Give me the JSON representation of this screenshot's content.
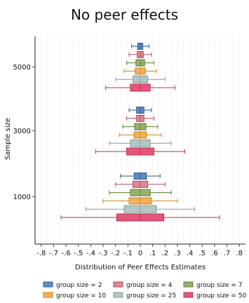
{
  "chart_data": {
    "type": "box",
    "title": "No peer effects",
    "xlabel": "Distribution of Peer Effects Estimates",
    "ylabel": "Sample size",
    "xlim": [
      -0.85,
      0.85
    ],
    "x_ticks": [
      -0.8,
      -0.7,
      -0.6,
      -0.5,
      -0.4,
      -0.3,
      -0.2,
      -0.1,
      0,
      0.1,
      0.2,
      0.3,
      0.4,
      0.5,
      0.6,
      0.7,
      0.8
    ],
    "x_tick_labels": [
      "-.8",
      "-.7",
      "-.6",
      "-.5",
      "-.4",
      "-.3",
      "-.2",
      "-.1",
      "0",
      ".1",
      ".2",
      ".3",
      ".4",
      ".5",
      ".6",
      ".7",
      ".8"
    ],
    "grid": "vertical dotted",
    "legend_position": "bottom",
    "groups": [
      {
        "label": "5000",
        "series": [
          {
            "name": "group size = 2",
            "whisker_low": -0.07,
            "q1": -0.02,
            "median": 0.0,
            "q3": 0.02,
            "whisker_high": 0.07
          },
          {
            "name": "group size = 4",
            "whisker_low": -0.09,
            "q1": -0.025,
            "median": 0.0,
            "q3": 0.025,
            "whisker_high": 0.09
          },
          {
            "name": "group size = 7",
            "whisker_low": -0.11,
            "q1": -0.035,
            "median": 0.0,
            "q3": 0.035,
            "whisker_high": 0.11
          },
          {
            "name": "group size = 10",
            "whisker_low": -0.13,
            "q1": -0.04,
            "median": 0.0,
            "q3": 0.04,
            "whisker_high": 0.13
          },
          {
            "name": "group size = 25",
            "whisker_low": -0.2,
            "q1": -0.06,
            "median": 0.0,
            "q3": 0.06,
            "whisker_high": 0.2
          },
          {
            "name": "group size = 50",
            "whisker_low": -0.28,
            "q1": -0.08,
            "median": 0.0,
            "q3": 0.08,
            "whisker_high": 0.28
          }
        ]
      },
      {
        "label": "3000",
        "series": [
          {
            "name": "group size = 2",
            "whisker_low": -0.09,
            "q1": -0.03,
            "median": 0.0,
            "q3": 0.03,
            "whisker_high": 0.09
          },
          {
            "name": "group size = 4",
            "whisker_low": -0.11,
            "q1": -0.03,
            "median": 0.0,
            "q3": 0.03,
            "whisker_high": 0.11
          },
          {
            "name": "group size = 7",
            "whisker_low": -0.14,
            "q1": -0.045,
            "median": 0.0,
            "q3": 0.045,
            "whisker_high": 0.14
          },
          {
            "name": "group size = 10",
            "whisker_low": -0.17,
            "q1": -0.05,
            "median": 0.0,
            "q3": 0.05,
            "whisker_high": 0.17
          },
          {
            "name": "group size = 25",
            "whisker_low": -0.25,
            "q1": -0.08,
            "median": 0.0,
            "q3": 0.08,
            "whisker_high": 0.25
          },
          {
            "name": "group size = 50",
            "whisker_low": -0.36,
            "q1": -0.11,
            "median": 0.0,
            "q3": 0.11,
            "whisker_high": 0.36
          }
        ]
      },
      {
        "label": "1000",
        "series": [
          {
            "name": "group size = 2",
            "whisker_low": -0.16,
            "q1": -0.05,
            "median": 0.0,
            "q3": 0.05,
            "whisker_high": 0.16
          },
          {
            "name": "group size = 4",
            "whisker_low": -0.2,
            "q1": -0.06,
            "median": 0.0,
            "q3": 0.06,
            "whisker_high": 0.2
          },
          {
            "name": "group size = 7",
            "whisker_low": -0.25,
            "q1": -0.08,
            "median": 0.0,
            "q3": 0.08,
            "whisker_high": 0.25
          },
          {
            "name": "group size = 10",
            "whisker_low": -0.3,
            "q1": -0.09,
            "median": 0.0,
            "q3": 0.09,
            "whisker_high": 0.3
          },
          {
            "name": "group size = 25",
            "whisker_low": -0.44,
            "q1": -0.13,
            "median": 0.0,
            "q3": 0.13,
            "whisker_high": 0.44
          },
          {
            "name": "group size = 50",
            "whisker_low": -0.64,
            "q1": -0.19,
            "median": 0.0,
            "q3": 0.19,
            "whisker_high": 0.64
          }
        ]
      }
    ],
    "series_styles": [
      {
        "name": "group size = 2",
        "fill": "#5b8ec4",
        "stroke": "#2d5a8e"
      },
      {
        "name": "group size = 4",
        "fill": "#d98a96",
        "stroke": "#b04a5c"
      },
      {
        "name": "group size = 7",
        "fill": "#98b46a",
        "stroke": "#5d7a33"
      },
      {
        "name": "group size = 10",
        "fill": "#f2b15a",
        "stroke": "#d08518"
      },
      {
        "name": "group size = 25",
        "fill": "#b4c7c4",
        "stroke": "#7f9e99"
      },
      {
        "name": "group size = 50",
        "fill": "#e4577a",
        "stroke": "#b8304f"
      }
    ]
  }
}
